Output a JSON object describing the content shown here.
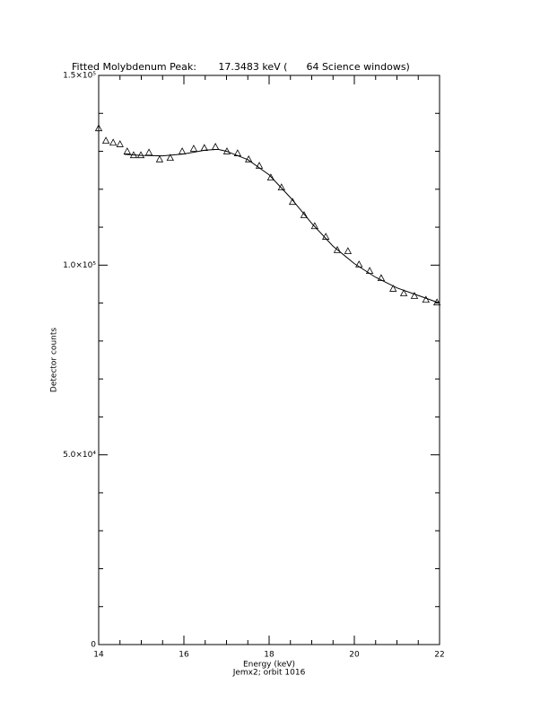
{
  "chart_data": {
    "type": "scatter",
    "title": "Fitted Molybdenum Peak:       17.3483 keV (      64 Science windows)",
    "x_label": "Energy (keV)",
    "y_label": "Detector counts",
    "subtitle": "Jemx2; orbit 1016",
    "xlim": [
      14,
      22
    ],
    "xticks": [
      14,
      16,
      18,
      20,
      22
    ],
    "x_minor_ticks": [
      14.5,
      15,
      15.5,
      16.5,
      17,
      17.5,
      18.5,
      19,
      19.5,
      20.5,
      21,
      21.5
    ],
    "ylim": [
      0,
      150000
    ],
    "yticks": [
      {
        "value": 0,
        "label": "0"
      },
      {
        "value": 50000,
        "label": "5.0×10⁴"
      },
      {
        "value": 100000,
        "label": "1.0×10⁵"
      },
      {
        "value": 150000,
        "label": "1.5×10⁵"
      }
    ],
    "y_minor_ticks": [
      10000,
      20000,
      30000,
      40000,
      60000,
      70000,
      80000,
      90000,
      110000,
      120000,
      130000,
      140000
    ],
    "color": "#000000",
    "points": {
      "x": [
        14.0,
        14.17,
        14.34,
        14.5,
        14.67,
        14.82,
        14.99,
        15.18,
        15.43,
        15.68,
        15.96,
        16.23,
        16.48,
        16.74,
        17.01,
        17.26,
        17.52,
        17.77,
        18.04,
        18.29,
        18.55,
        18.82,
        19.07,
        19.33,
        19.6,
        19.85,
        20.11,
        20.36,
        20.63,
        20.91,
        21.16,
        21.41,
        21.68,
        21.94
      ],
      "values": [
        136000,
        132700,
        132200,
        131800,
        129900,
        128900,
        128900,
        129600,
        127800,
        128200,
        129900,
        130600,
        130800,
        131100,
        129900,
        129400,
        127800,
        126100,
        123000,
        120400,
        116600,
        113100,
        110200,
        107400,
        103900,
        103600,
        100100,
        98400,
        96500,
        93700,
        92500,
        91800,
        90800,
        90100
      ]
    },
    "fit": {
      "x": [
        14.6,
        15,
        15.5,
        16,
        16.5,
        16.8,
        17,
        17.5,
        18,
        18.5,
        19,
        19.5,
        20,
        20.5,
        21,
        21.5,
        22
      ],
      "values": [
        129200,
        128900,
        128800,
        129300,
        130300,
        130500,
        130000,
        127800,
        123800,
        117800,
        111000,
        105000,
        100400,
        96800,
        94000,
        92000,
        90000
      ]
    }
  }
}
